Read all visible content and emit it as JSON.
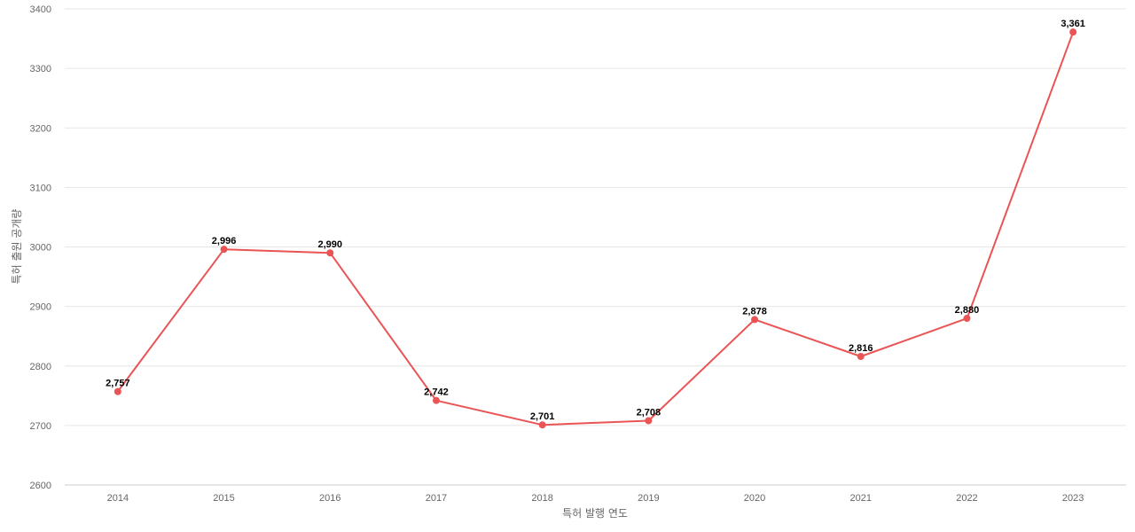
{
  "chart_data": {
    "type": "line",
    "title": "",
    "xlabel": "특허 발행 연도",
    "ylabel": "특허 출원 공개량",
    "categories": [
      "2014",
      "2015",
      "2016",
      "2017",
      "2018",
      "2019",
      "2020",
      "2021",
      "2022",
      "2023"
    ],
    "series": [
      {
        "values": [
          2757,
          2996,
          2990,
          2742,
          2701,
          2708,
          2878,
          2816,
          2880,
          3361
        ],
        "data_labels": [
          "2,757",
          "2,996",
          "2,990",
          "2,742",
          "2,701",
          "2,708",
          "2,878",
          "2,816",
          "2,880",
          "3,361"
        ],
        "color": "#ea5455"
      }
    ],
    "ylim": [
      2600,
      3400
    ],
    "yticks": [
      "2600",
      "2700",
      "2800",
      "2900",
      "3000",
      "3100",
      "3200",
      "3300",
      "3400"
    ],
    "grid": true,
    "legend": "none"
  }
}
